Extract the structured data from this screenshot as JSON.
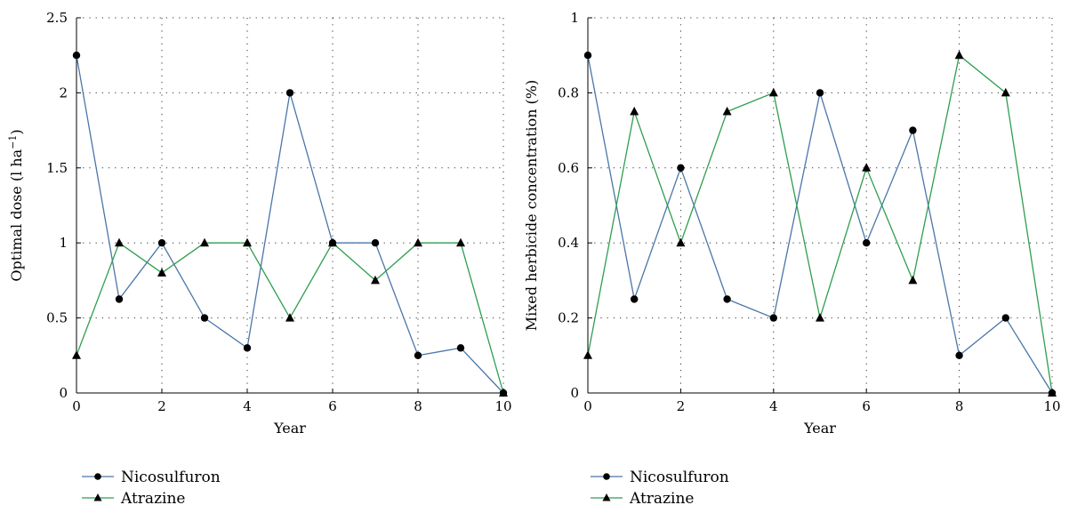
{
  "chart_data": [
    {
      "type": "line",
      "xlabel": "Year",
      "ylabel_main": "Optimal dose (l ha",
      "ylabel_sup": "−1",
      "ylabel_end": ")",
      "xlim": [
        0,
        10
      ],
      "ylim": [
        0,
        2.5
      ],
      "xticks": [
        0,
        2,
        4,
        6,
        8,
        10
      ],
      "yticks": [
        0,
        0.5,
        1,
        1.5,
        2,
        2.5
      ],
      "ytick_labels": [
        "0",
        "0.5",
        "1",
        "1.5",
        "2",
        "2.5"
      ],
      "x": [
        0,
        1,
        2,
        3,
        4,
        5,
        6,
        7,
        8,
        9,
        10
      ],
      "grid": true,
      "legend_position": "bottom-left",
      "series": [
        {
          "name": "Nicosulfuron",
          "marker": "circle",
          "color": "#4a76a8",
          "values": [
            2.25,
            0.625,
            1.0,
            0.5,
            0.3,
            2.0,
            1.0,
            1.0,
            0.25,
            0.3,
            0.0
          ]
        },
        {
          "name": "Atrazine",
          "marker": "triangle",
          "color": "#2e9e4f",
          "values": [
            0.25,
            1.0,
            0.8,
            1.0,
            1.0,
            0.5,
            1.0,
            0.75,
            1.0,
            1.0,
            0.0
          ]
        }
      ]
    },
    {
      "type": "line",
      "xlabel": "Year",
      "ylabel_main": "Mixed herbicide concentration (%)",
      "ylabel_sup": "",
      "ylabel_end": "",
      "xlim": [
        0,
        10
      ],
      "ylim": [
        0,
        1
      ],
      "xticks": [
        0,
        2,
        4,
        6,
        8,
        10
      ],
      "yticks": [
        0,
        0.2,
        0.4,
        0.6,
        0.8,
        1
      ],
      "ytick_labels": [
        "0",
        "0.2",
        "0.4",
        "0.6",
        "0.8",
        "1"
      ],
      "x": [
        0,
        1,
        2,
        3,
        4,
        5,
        6,
        7,
        8,
        9,
        10
      ],
      "grid": true,
      "legend_position": "bottom-left",
      "series": [
        {
          "name": "Nicosulfuron",
          "marker": "circle",
          "color": "#4a76a8",
          "values": [
            0.9,
            0.25,
            0.6,
            0.25,
            0.2,
            0.8,
            0.4,
            0.7,
            0.1,
            0.2,
            0.0
          ]
        },
        {
          "name": "Atrazine",
          "marker": "triangle",
          "color": "#2e9e4f",
          "values": [
            0.1,
            0.75,
            0.4,
            0.75,
            0.8,
            0.2,
            0.6,
            0.3,
            0.9,
            0.8,
            0.0
          ]
        }
      ]
    }
  ]
}
